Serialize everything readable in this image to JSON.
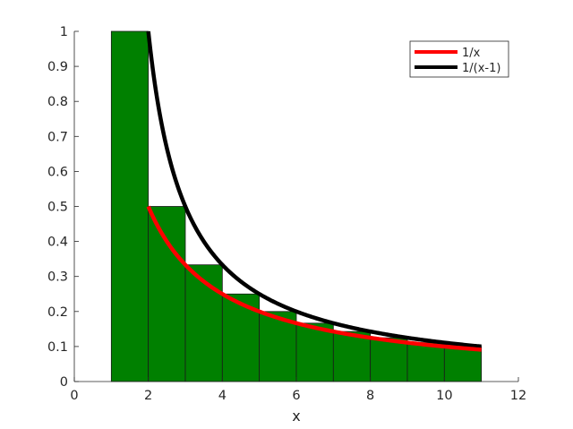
{
  "chart_data": {
    "type": "bar",
    "title": "",
    "xlabel": "x",
    "ylabel": "",
    "xlim": [
      0,
      12
    ],
    "ylim": [
      0,
      1
    ],
    "xticks": [
      0,
      2,
      4,
      6,
      8,
      10,
      12
    ],
    "yticks": [
      0,
      0.1,
      0.2,
      0.3,
      0.4,
      0.5,
      0.6,
      0.7,
      0.8,
      0.9,
      1
    ],
    "ytick_labels": [
      "0",
      "0.1",
      "0.2",
      "0.3",
      "0.4",
      "0.5",
      "0.6",
      "0.7",
      "0.8",
      "0.9",
      "1"
    ],
    "grid": false,
    "legend_position": "upper right",
    "bars": {
      "color": "#008000",
      "edge_color": "#1a1a1a",
      "left_edges": [
        1,
        2,
        3,
        4,
        5,
        6,
        7,
        8,
        9,
        10
      ],
      "width": 1,
      "values": [
        1,
        0.5,
        0.3333,
        0.25,
        0.2,
        0.1667,
        0.1429,
        0.125,
        0.1111,
        0.1
      ]
    },
    "series": [
      {
        "name": "1/x",
        "type": "line",
        "color": "#ff0000",
        "x_range": [
          2,
          11
        ],
        "formula": "1/x"
      },
      {
        "name": "1/(x-1)",
        "type": "line",
        "color": "#000000",
        "x_range": [
          2,
          11
        ],
        "formula": "1/(x-1)"
      }
    ]
  },
  "legend": {
    "items": [
      {
        "label": "1/x",
        "color": "#ff0000"
      },
      {
        "label": "1/(x-1)",
        "color": "#000000"
      }
    ]
  }
}
